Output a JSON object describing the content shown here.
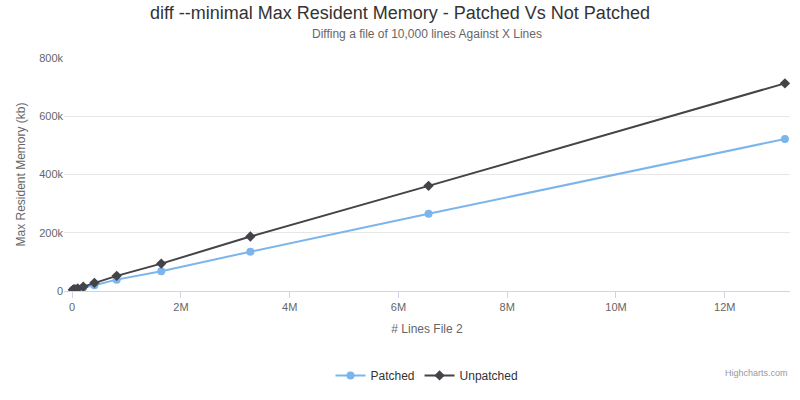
{
  "chart_data": {
    "type": "line",
    "title": "diff --minimal Max Resident Memory - Patched Vs Not Patched",
    "subtitle": "Diffing a file of 10,000 lines Against X Lines",
    "x_label": "# Lines File 2",
    "y_label": "Max Resident Memory (kb)",
    "credits": "Highcharts.com",
    "x": [
      12800,
      25600,
      51200,
      102400,
      204800,
      409600,
      819200,
      1638400,
      3276800,
      6553600,
      13107200
    ],
    "series": [
      {
        "name": "Patched",
        "color": "#7cb5ec",
        "marker": "circle",
        "values": [
          3500,
          4000,
          5000,
          7000,
          12000,
          20000,
          39000,
          68000,
          135000,
          265000,
          522000
        ]
      },
      {
        "name": "Unpatched",
        "color": "#434348",
        "marker": "diamond",
        "values": [
          4000,
          5000,
          6000,
          9000,
          15000,
          28000,
          52000,
          94000,
          187000,
          361000,
          713000
        ]
      }
    ],
    "xlim": [
      -150000,
      13200000
    ],
    "xticks": [
      0,
      {
        "value": 2000000,
        "label": "2M"
      },
      {
        "value": 4000000,
        "label": "4M"
      },
      {
        "value": 6000000,
        "label": "6M"
      },
      {
        "value": 8000000,
        "label": "8M"
      },
      {
        "value": 10000000,
        "label": "10M"
      },
      {
        "value": 12000000,
        "label": "12M"
      }
    ],
    "ylim": [
      0,
      800000
    ],
    "yticks": [
      0,
      {
        "value": 200000,
        "label": "200k"
      },
      {
        "value": 400000,
        "label": "400k"
      },
      {
        "value": 600000,
        "label": "600k"
      },
      {
        "value": 800000,
        "label": "800k"
      }
    ],
    "grid": true,
    "legend": "bottom"
  }
}
